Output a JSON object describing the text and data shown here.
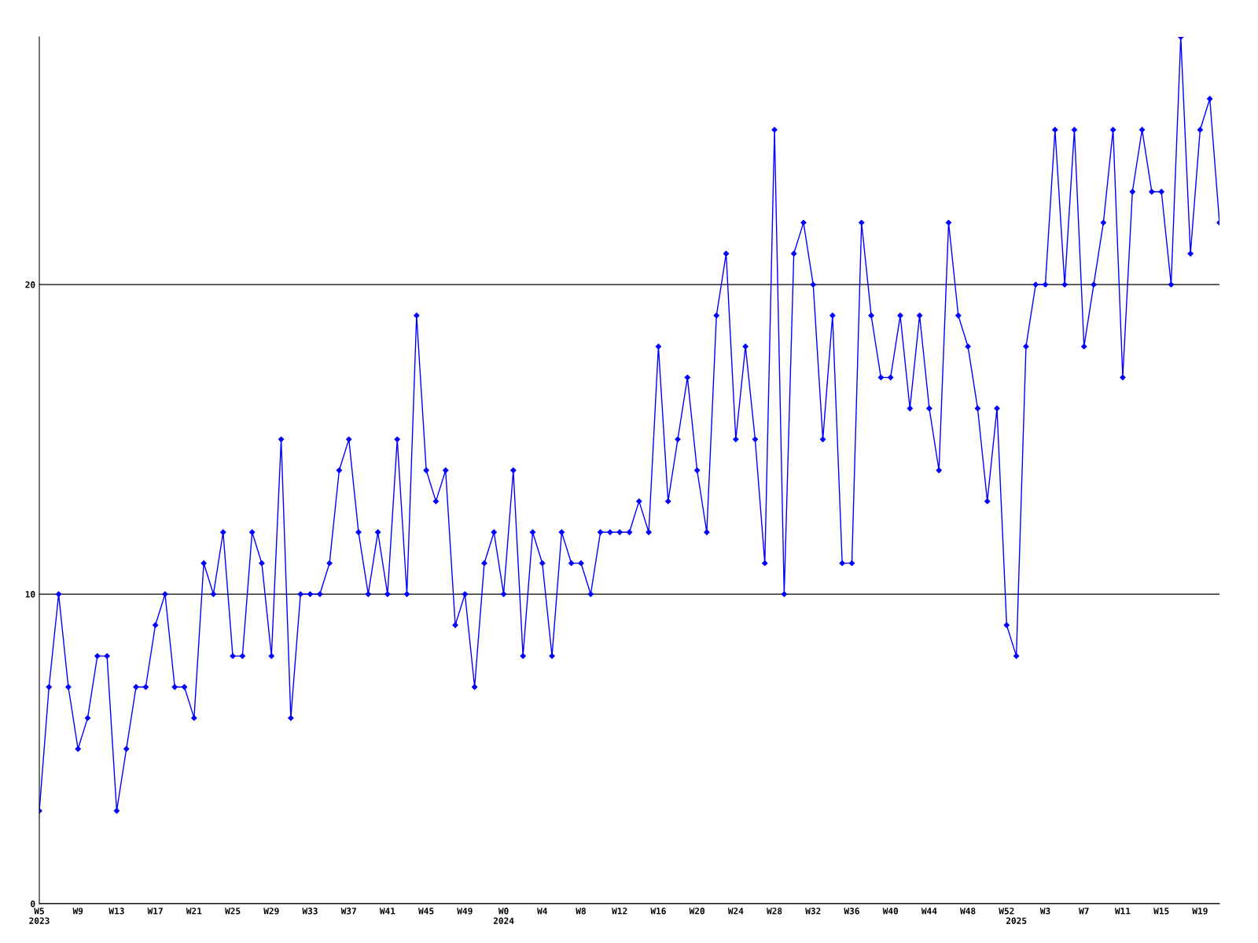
{
  "chart_data": {
    "type": "line",
    "categories": [
      "W5\n2023",
      null,
      null,
      null,
      "W9",
      null,
      null,
      null,
      "W13",
      null,
      null,
      null,
      "W17",
      null,
      null,
      null,
      "W21",
      null,
      null,
      null,
      "W25",
      null,
      null,
      null,
      "W29",
      null,
      null,
      null,
      "W33",
      null,
      null,
      null,
      "W37",
      null,
      null,
      null,
      "W41",
      null,
      null,
      null,
      "W45",
      null,
      null,
      null,
      "W49",
      null,
      null,
      null,
      "W0\n2024",
      null,
      null,
      null,
      "W4",
      null,
      null,
      null,
      "W8",
      null,
      null,
      null,
      "W12",
      null,
      null,
      null,
      "W16",
      null,
      null,
      null,
      "W20",
      null,
      null,
      null,
      "W24",
      null,
      null,
      null,
      "W28",
      null,
      null,
      null,
      "W32",
      null,
      null,
      null,
      "W36",
      null,
      null,
      null,
      "W40",
      null,
      null,
      null,
      "W44",
      null,
      null,
      null,
      "W48",
      null,
      null,
      null,
      "W52",
      "\n2025",
      null,
      null,
      "W3",
      null,
      null,
      null,
      "W7",
      null,
      null,
      null,
      "W11",
      null,
      null,
      null,
      "W15",
      null,
      null,
      null,
      "W19",
      null,
      null
    ],
    "series": [
      {
        "color": "#0000ff",
        "values": [
          3,
          7,
          10,
          7,
          5,
          6,
          8,
          8,
          3,
          5,
          7,
          7,
          9,
          10,
          7,
          7,
          6,
          11,
          10,
          12,
          8,
          8,
          12,
          11,
          8,
          15,
          6,
          10,
          10,
          10,
          11,
          14,
          15,
          12,
          10,
          12,
          10,
          15,
          10,
          19,
          14,
          13,
          14,
          9,
          10,
          7,
          11,
          12,
          10,
          14,
          8,
          12,
          11,
          8,
          12,
          11,
          11,
          10,
          12,
          12,
          12,
          12,
          13,
          12,
          18,
          13,
          15,
          17,
          14,
          12,
          19,
          21,
          15,
          18,
          15,
          11,
          25,
          10,
          21,
          22,
          20,
          15,
          19,
          11,
          11,
          22,
          19,
          17,
          17,
          19,
          16,
          19,
          16,
          14,
          22,
          19,
          18,
          16,
          13,
          16,
          9,
          8,
          18,
          20,
          20,
          25,
          20,
          25,
          18,
          20,
          22,
          25,
          17,
          23,
          25,
          23,
          23,
          20,
          28,
          21,
          25,
          26,
          22
        ]
      }
    ],
    "ylim": [
      0,
      28
    ],
    "yticks": [
      0,
      10,
      20
    ],
    "grid": "y",
    "marker": "diamond",
    "line_style": "solid",
    "legend": false
  }
}
